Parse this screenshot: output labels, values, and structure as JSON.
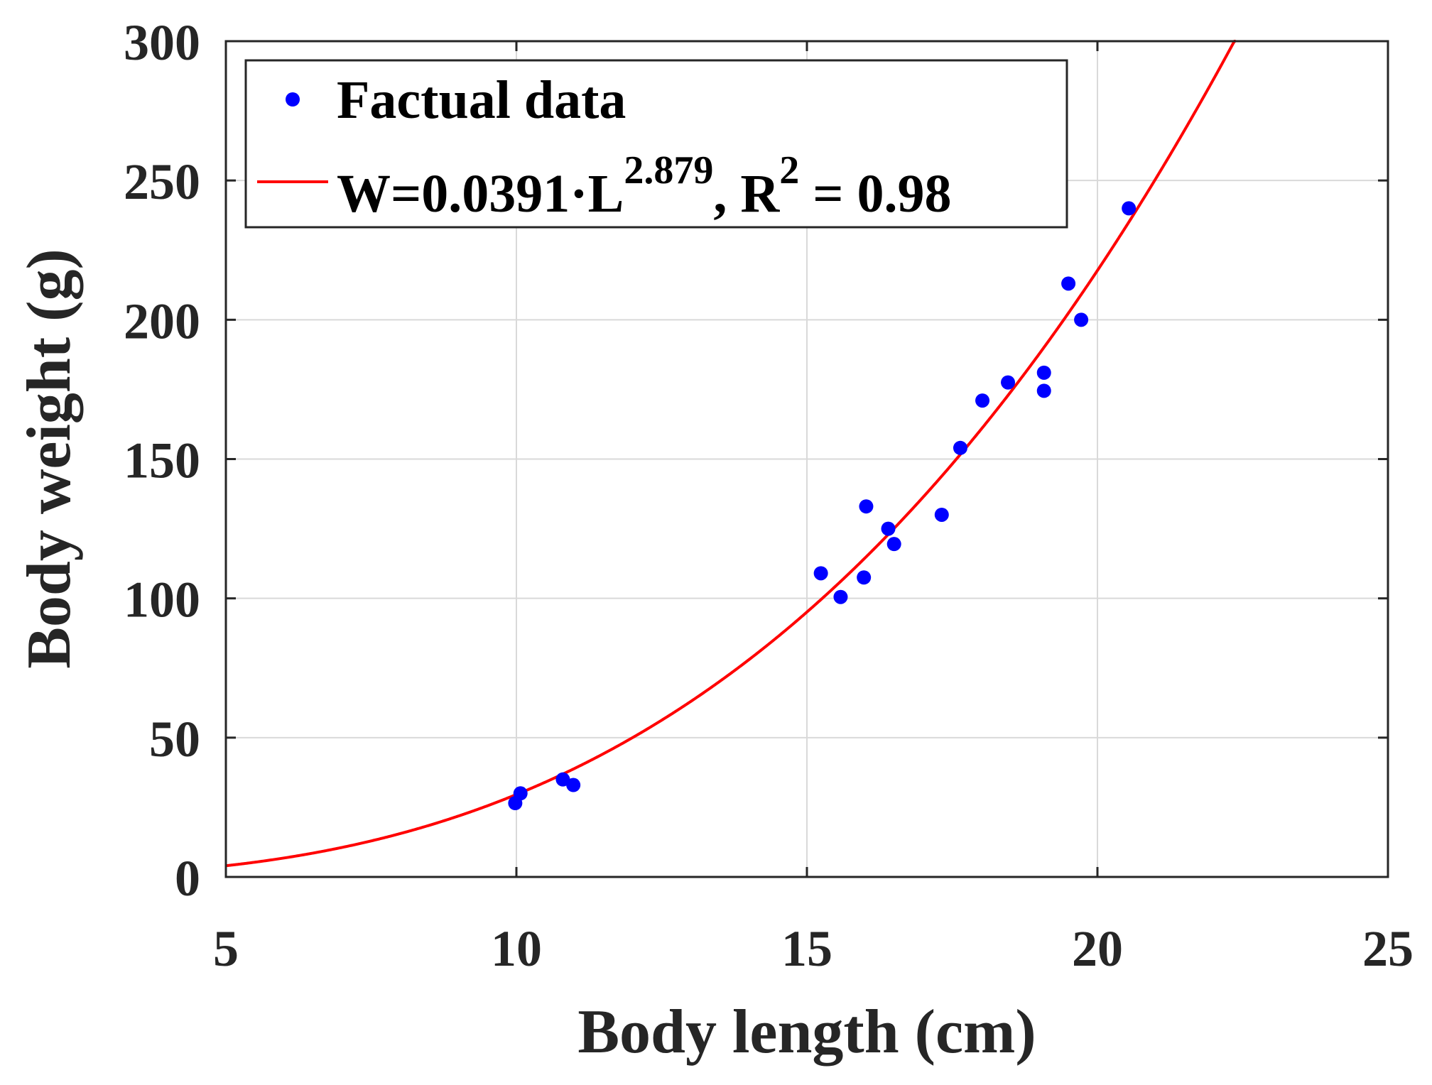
{
  "chart_data": {
    "type": "scatter",
    "title": "",
    "xlabel": "Body length (cm)",
    "ylabel": "Body weight (g)",
    "xlim": [
      5,
      25
    ],
    "ylim": [
      0,
      300
    ],
    "xticks": [
      5,
      10,
      15,
      20,
      25
    ],
    "yticks": [
      0,
      50,
      100,
      150,
      200,
      250,
      300
    ],
    "grid": true,
    "legend_position": "top-left",
    "series": [
      {
        "name": "Factual data",
        "kind": "scatter",
        "color": "#0000ff",
        "points": [
          {
            "x": 9.98,
            "y": 26.5
          },
          {
            "x": 10.07,
            "y": 30.0
          },
          {
            "x": 10.8,
            "y": 35.0
          },
          {
            "x": 10.98,
            "y": 33.0
          },
          {
            "x": 15.24,
            "y": 109.0
          },
          {
            "x": 15.58,
            "y": 100.5
          },
          {
            "x": 15.98,
            "y": 107.5
          },
          {
            "x": 16.02,
            "y": 133.0
          },
          {
            "x": 16.4,
            "y": 125.0
          },
          {
            "x": 16.5,
            "y": 119.5
          },
          {
            "x": 17.32,
            "y": 130.0
          },
          {
            "x": 17.64,
            "y": 154.0
          },
          {
            "x": 18.02,
            "y": 171.0
          },
          {
            "x": 18.46,
            "y": 177.5
          },
          {
            "x": 19.08,
            "y": 181.0
          },
          {
            "x": 19.08,
            "y": 174.5
          },
          {
            "x": 19.5,
            "y": 213.0
          },
          {
            "x": 19.72,
            "y": 200.0
          },
          {
            "x": 20.54,
            "y": 240.0
          }
        ]
      },
      {
        "name": "W=0.0391·L^2.879, R^2 = 0.98",
        "kind": "curve",
        "color": "#ff0000",
        "model": {
          "a": 0.0391,
          "b": 2.879,
          "r2": 0.98
        }
      }
    ],
    "legend": {
      "scatter_label": "Factual data",
      "fit_w": "W=0.0391·L",
      "fit_exp": "2.879",
      "fit_r": ", R",
      "fit_r_exp": "2",
      "fit_tail": " = 0.98"
    }
  }
}
